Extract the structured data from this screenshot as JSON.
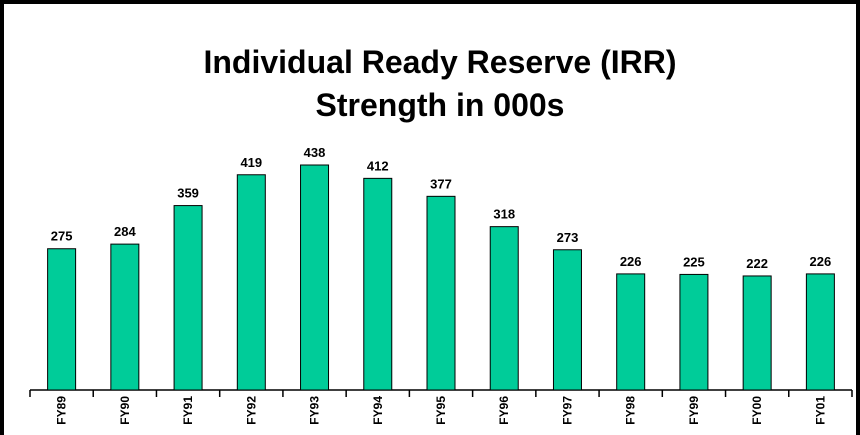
{
  "chart_data": {
    "type": "bar",
    "title": [
      "Individual Ready Reserve (IRR)",
      "Strength in 000s"
    ],
    "categories": [
      "FY89",
      "FY90",
      "FY91",
      "FY92",
      "FY93",
      "FY94",
      "FY95",
      "FY96",
      "FY97",
      "FY98",
      "FY99",
      "FY00",
      "FY01"
    ],
    "values": [
      275,
      284,
      359,
      419,
      438,
      412,
      377,
      318,
      273,
      226,
      225,
      222,
      226
    ],
    "color": "#00cc99"
  }
}
